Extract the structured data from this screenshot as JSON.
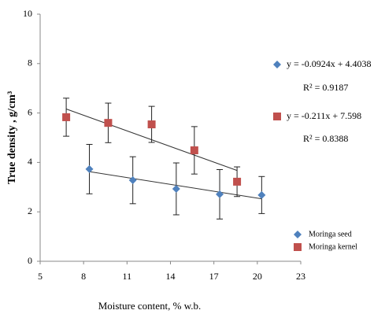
{
  "chart_data": {
    "type": "scatter",
    "xlabel": "Moisture content, % w.b.",
    "ylabel": "True density , g/cm³",
    "xlim": [
      5,
      23
    ],
    "xticks": [
      5,
      8,
      11,
      14,
      17,
      20,
      23
    ],
    "ylim": [
      0,
      10
    ],
    "yticks": [
      0,
      2,
      4,
      6,
      8,
      10
    ],
    "grid": false,
    "legend": "lower right",
    "series": [
      {
        "name": "Moringa seed",
        "color": "#4f81bd",
        "marker": "diamond",
        "x": [
          8.4,
          11.4,
          14.4,
          17.4,
          20.3
        ],
        "values": [
          3.73,
          3.28,
          2.93,
          2.71,
          2.68
        ],
        "errors": [
          1.0,
          0.95,
          1.05,
          1.0,
          0.75
        ],
        "trendline": {
          "slope": -0.0924,
          "intercept": 4.4038,
          "label": "y = -0.0924x + 4.4038",
          "r2_label": "R² = 0.9187"
        }
      },
      {
        "name": "Moringa kernel",
        "color": "#c0504d",
        "marker": "square",
        "x": [
          6.8,
          9.7,
          12.7,
          15.65,
          18.6
        ],
        "values": [
          5.83,
          5.6,
          5.54,
          4.49,
          3.22
        ],
        "errors": [
          0.77,
          0.8,
          0.73,
          0.96,
          0.6
        ],
        "trendline": {
          "slope": -0.211,
          "intercept": 7.598,
          "label": "y = -0.211x + 7.598",
          "r2_label": "R² = 0.8388"
        }
      }
    ]
  }
}
